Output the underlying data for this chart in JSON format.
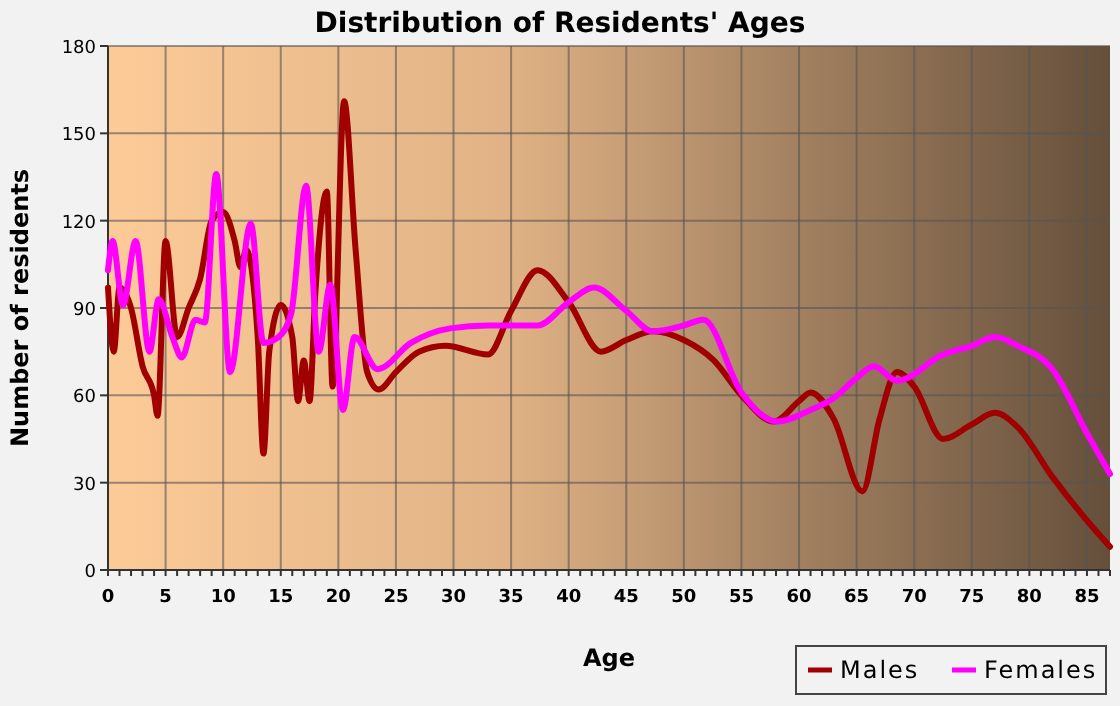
{
  "chart_data": {
    "type": "line",
    "title": "Distribution of Residents' Ages",
    "xlabel": "Age",
    "ylabel": "Number of residents",
    "xlim": [
      0,
      87
    ],
    "xticks": [
      0,
      5,
      10,
      15,
      20,
      25,
      30,
      35,
      40,
      45,
      50,
      55,
      60,
      65,
      70,
      75,
      80,
      85
    ],
    "ylim": [
      0,
      180
    ],
    "yticks": [
      0,
      30,
      60,
      90,
      120,
      150,
      180
    ],
    "grid": true,
    "legend": "bottom right",
    "marker": "none",
    "line_style": "solid",
    "series": [
      {
        "name": "Males",
        "color": "#a00000",
        "x": [
          0,
          0.5,
          1,
          2,
          3,
          4,
          4.3,
          5,
          6,
          7,
          8,
          9,
          10,
          11,
          11.5,
          12,
          13,
          13.5,
          14,
          15,
          16,
          16.5,
          17,
          17.5,
          18,
          19,
          19.5,
          20.5,
          21.5,
          22.5,
          23.5,
          25,
          27,
          29.3,
          33,
          35,
          37.3,
          40,
          42.8,
          45,
          47.3,
          50,
          52.6,
          55,
          57.8,
          60,
          61,
          63,
          65.5,
          67,
          68.5,
          70,
          72.5,
          75,
          77,
          79,
          82,
          85,
          87
        ],
        "values": [
          97,
          75,
          97,
          90,
          70,
          60,
          53,
          113,
          80,
          90,
          100,
          120,
          123,
          113,
          104,
          110,
          80,
          40,
          75,
          91,
          80,
          58,
          72,
          58,
          95,
          130,
          63,
          161,
          110,
          68,
          62,
          68,
          75,
          77,
          74,
          89,
          103,
          92,
          75,
          79,
          82,
          79,
          72,
          60,
          51,
          58,
          61,
          52,
          27,
          52,
          68,
          63,
          45,
          50,
          54,
          49,
          32,
          17,
          8
        ]
      },
      {
        "name": "Females",
        "color": "#ff00ff",
        "x": [
          0,
          0.4,
          1.3,
          2.4,
          3.6,
          4.4,
          5.6,
          6.4,
          7.6,
          8.4,
          9.4,
          10.6,
          12.4,
          13.5,
          14.8,
          15.9,
          17.2,
          18.3,
          19.3,
          20.4,
          21.4,
          23.4,
          26.3,
          29.7,
          33,
          35,
          37.3,
          40,
          42.2,
          45,
          47.3,
          50,
          51.7,
          55,
          58.1,
          61,
          63,
          65,
          66.5,
          68.5,
          72.5,
          75,
          77,
          79,
          82,
          85,
          87
        ],
        "values": [
          103,
          113,
          91,
          113,
          75,
          93,
          80,
          73,
          86,
          85,
          136,
          68,
          119,
          78,
          80,
          88,
          132,
          75,
          98,
          55,
          80,
          69,
          78,
          83,
          84,
          84,
          84,
          92,
          97,
          89,
          82,
          84,
          86,
          61,
          51,
          55,
          59,
          66,
          70,
          65,
          74,
          77,
          80,
          77,
          69,
          47,
          33
        ]
      }
    ]
  }
}
